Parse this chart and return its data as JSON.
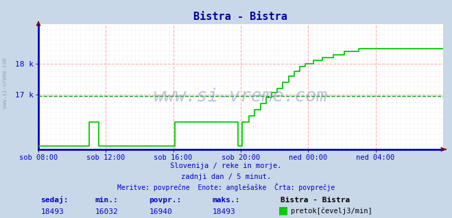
{
  "title": "Bistra - Bistra",
  "title_color": "#000099",
  "bg_color": "#c8d8e8",
  "plot_bg_color": "#ffffff",
  "grid_color_major": "#ffaaaa",
  "grid_color_minor": "#dddddd",
  "line_color": "#00cc00",
  "avg_line_color": "#009900",
  "axis_color": "#0000cc",
  "spine_color": "#0000cc",
  "tick_color": "#880000",
  "ytick_labels": [
    "17 k",
    "18 k"
  ],
  "ytick_values": [
    17000,
    18000
  ],
  "ylim": [
    15200,
    19300
  ],
  "xlabel_ticks": [
    "sob 08:00",
    "sob 12:00",
    "sob 16:00",
    "sob 20:00",
    "ned 00:00",
    "ned 04:00"
  ],
  "xlabel_tick_positions": [
    0,
    48,
    96,
    144,
    192,
    240
  ],
  "n_points": 289,
  "avg_value": 16940,
  "min_value": 16032,
  "max_value": 18493,
  "current_value": 18493,
  "watermark_text": "www.si-vreme.com",
  "footer_line1": "Slovenija / reke in morje.",
  "footer_line2": "zadnji dan / 5 minut.",
  "footer_line3": "Meritve: povprečne  Enote: anglešaške  Črta: povprečje",
  "legend_station": "Bistra - Bistra",
  "legend_unit": "pretok[čevelj3/min]",
  "stat_labels": [
    "sedaj:",
    "min.:",
    "povpr.:",
    "maks.:"
  ],
  "stat_values": [
    "18493",
    "16032",
    "16940",
    "18493"
  ],
  "font_color_stats": "#0000cc",
  "watermark_color": "#8899bb",
  "left_watermark": "www.si-vreme.com"
}
